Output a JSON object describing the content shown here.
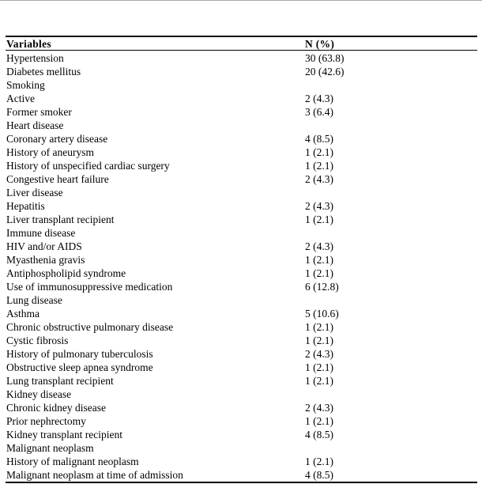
{
  "page": {
    "background": "#ffffff",
    "text_color": "#000000",
    "rule_color": "#000000"
  },
  "table": {
    "headers": [
      "Variables",
      "N (%)"
    ],
    "rows": [
      {
        "label": "Hypertension",
        "value": "30 (63.8)"
      },
      {
        "label": "Diabetes mellitus",
        "value": "20 (42.6)"
      },
      {
        "label": "Smoking",
        "value": ""
      },
      {
        "label": "Active",
        "value": "2 (4.3)"
      },
      {
        "label": "Former smoker",
        "value": "3 (6.4)"
      },
      {
        "label": "Heart disease",
        "value": ""
      },
      {
        "label": "Coronary artery disease",
        "value": "4 (8.5)"
      },
      {
        "label": "History of aneurysm",
        "value": "1 (2.1)"
      },
      {
        "label": "History of unspecified cardiac surgery",
        "value": "1 (2.1)"
      },
      {
        "label": "Congestive heart failure",
        "value": "2 (4.3)"
      },
      {
        "label": "Liver disease",
        "value": ""
      },
      {
        "label": "Hepatitis",
        "value": "2 (4.3)"
      },
      {
        "label": "Liver transplant recipient",
        "value": "1 (2.1)"
      },
      {
        "label": "Immune disease",
        "value": ""
      },
      {
        "label": "HIV and/or AIDS",
        "value": "2 (4.3)"
      },
      {
        "label": "Myasthenia gravis",
        "value": "1 (2.1)"
      },
      {
        "label": "Antiphospholipid syndrome",
        "value": "1 (2.1)"
      },
      {
        "label": "Use of immunosuppressive medication",
        "value": "6 (12.8)"
      },
      {
        "label": "Lung disease",
        "value": ""
      },
      {
        "label": "Asthma",
        "value": "5 (10.6)"
      },
      {
        "label": "Chronic obstructive pulmonary disease",
        "value": "1 (2.1)"
      },
      {
        "label": "Cystic fibrosis",
        "value": "1 (2.1)"
      },
      {
        "label": "History of pulmonary tuberculosis",
        "value": "2 (4.3)"
      },
      {
        "label": "Obstructive sleep apnea syndrome",
        "value": "1 (2.1)"
      },
      {
        "label": "Lung transplant recipient",
        "value": "1 (2.1)"
      },
      {
        "label": "Kidney disease",
        "value": ""
      },
      {
        "label": "Chronic kidney disease",
        "value": "2 (4.3)"
      },
      {
        "label": "Prior nephrectomy",
        "value": "1 (2.1)"
      },
      {
        "label": "Kidney transplant recipient",
        "value": "4 (8.5)"
      },
      {
        "label": "Malignant neoplasm",
        "value": ""
      },
      {
        "label": "History of malignant neoplasm",
        "value": "1 (2.1)"
      },
      {
        "label": "Malignant neoplasm at time of admission",
        "value": "4 (8.5)"
      }
    ]
  }
}
